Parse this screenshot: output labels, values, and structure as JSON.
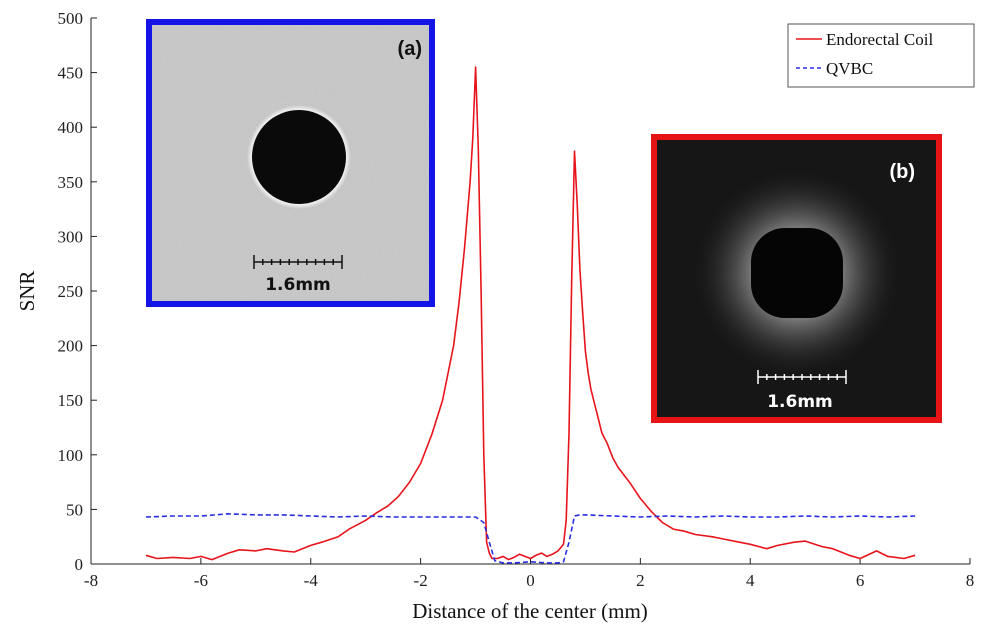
{
  "chart_data": {
    "type": "line",
    "xlabel": "Distance of the center (mm)",
    "ylabel": "SNR",
    "xlim": [
      -8,
      8
    ],
    "ylim": [
      0,
      500
    ],
    "xticks": [
      -8,
      -6,
      -4,
      -2,
      0,
      2,
      4,
      6,
      8
    ],
    "yticks": [
      0,
      50,
      100,
      150,
      200,
      250,
      300,
      350,
      400,
      450,
      500
    ],
    "grid": false,
    "legend_position": "top-right",
    "series": [
      {
        "name": "Endorectal Coil",
        "color": "#e8141b",
        "style": "solid",
        "x": [
          -7.0,
          -6.8,
          -6.5,
          -6.2,
          -6.0,
          -5.8,
          -5.5,
          -5.3,
          -5.0,
          -4.8,
          -4.5,
          -4.3,
          -4.0,
          -3.8,
          -3.5,
          -3.3,
          -3.0,
          -2.8,
          -2.6,
          -2.4,
          -2.2,
          -2.0,
          -1.8,
          -1.6,
          -1.4,
          -1.3,
          -1.2,
          -1.1,
          -1.05,
          -1.0,
          -0.95,
          -0.9,
          -0.85,
          -0.8,
          -0.75,
          -0.7,
          -0.6,
          -0.5,
          -0.4,
          -0.3,
          -0.2,
          -0.1,
          0.0,
          0.1,
          0.2,
          0.3,
          0.4,
          0.5,
          0.6,
          0.65,
          0.7,
          0.75,
          0.8,
          0.85,
          0.9,
          0.95,
          1.0,
          1.05,
          1.1,
          1.2,
          1.3,
          1.4,
          1.5,
          1.6,
          1.8,
          2.0,
          2.2,
          2.4,
          2.6,
          2.8,
          3.0,
          3.3,
          3.5,
          3.8,
          4.0,
          4.3,
          4.5,
          4.8,
          5.0,
          5.3,
          5.5,
          5.8,
          6.0,
          6.3,
          6.5,
          6.8,
          7.0
        ],
        "values": [
          8,
          5,
          6,
          5,
          7,
          4,
          10,
          13,
          12,
          14,
          12,
          11,
          17,
          20,
          25,
          32,
          40,
          47,
          53,
          62,
          75,
          92,
          118,
          150,
          200,
          240,
          290,
          350,
          390,
          455,
          380,
          250,
          100,
          20,
          10,
          5,
          5,
          7,
          4,
          6,
          9,
          7,
          5,
          8,
          10,
          7,
          9,
          12,
          18,
          40,
          120,
          260,
          378,
          330,
          270,
          230,
          195,
          175,
          160,
          140,
          120,
          110,
          97,
          88,
          75,
          60,
          48,
          38,
          32,
          30,
          27,
          25,
          23,
          20,
          18,
          14,
          17,
          20,
          21,
          16,
          14,
          8,
          5,
          12,
          7,
          5,
          8
        ]
      },
      {
        "name": "QVBC",
        "color": "#2a2de0",
        "style": "dashed",
        "x": [
          -7.0,
          -6.5,
          -6.0,
          -5.5,
          -5.0,
          -4.5,
          -4.0,
          -3.5,
          -3.0,
          -2.5,
          -2.0,
          -1.5,
          -1.0,
          -0.85,
          -0.75,
          -0.65,
          -0.5,
          -0.3,
          0.0,
          0.3,
          0.5,
          0.6,
          0.7,
          0.8,
          0.9,
          1.0,
          1.5,
          2.0,
          2.5,
          3.0,
          3.5,
          4.0,
          4.5,
          5.0,
          5.5,
          6.0,
          6.5,
          7.0
        ],
        "values": [
          43,
          44,
          44,
          46,
          45,
          45,
          44,
          43,
          44,
          43,
          43,
          43,
          43,
          38,
          20,
          3,
          1,
          1,
          2,
          1,
          1,
          2,
          20,
          44,
          45,
          45,
          44,
          43,
          44,
          43,
          44,
          43,
          43,
          44,
          43,
          44,
          43,
          44
        ]
      }
    ]
  },
  "insets": {
    "a": {
      "label": "(a)",
      "scale_text": "1.6mm",
      "border_color": "#1414e6"
    },
    "b": {
      "label": "(b)",
      "scale_text": "1.6mm",
      "border_color": "#e61414"
    }
  }
}
